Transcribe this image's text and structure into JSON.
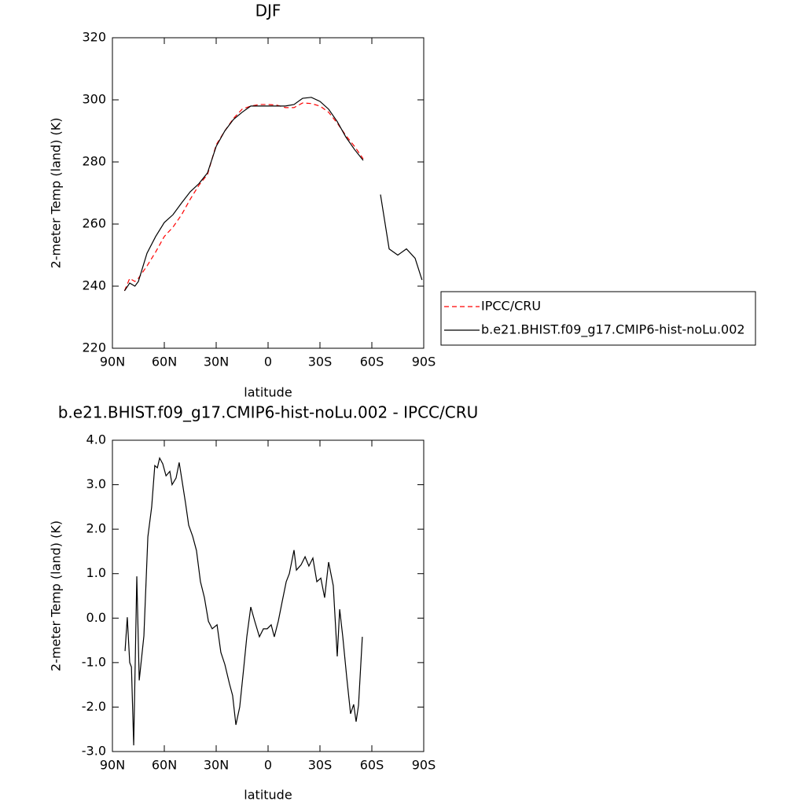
{
  "chart_data": [
    {
      "type": "line",
      "title": "DJF",
      "xlabel": "latitude",
      "ylabel": "2-meter Temp (land) (K)",
      "x": [
        83,
        80,
        77,
        75,
        70,
        65,
        60,
        55,
        50,
        45,
        40,
        35,
        30,
        25,
        20,
        15,
        10,
        5,
        0,
        -5,
        -10,
        -15,
        -20,
        -25,
        -30,
        -35,
        -40,
        -45,
        -50,
        -55,
        -60,
        -65,
        -70,
        -75,
        -80,
        -85,
        -89
      ],
      "series": [
        {
          "name": "IPCC/CRU",
          "color": "#ff0000",
          "dashed": true,
          "values": [
            238.5,
            242.5,
            241.5,
            242.5,
            246.5,
            251,
            256,
            259,
            263,
            268,
            272.5,
            276,
            285.5,
            290,
            294,
            297,
            298,
            298.5,
            298.5,
            298.3,
            297.5,
            297.5,
            299,
            298.8,
            298,
            296,
            292.5,
            288.5,
            285,
            281,
            null,
            null,
            null,
            null,
            null,
            null,
            null
          ]
        },
        {
          "name": "b.e21.BHIST.f09_g17.CMIP6-hist-noLu.002",
          "color": "#000000",
          "dashed": false,
          "values": [
            238.5,
            241,
            240,
            241.5,
            250.6,
            256,
            260.5,
            263,
            266.8,
            270.4,
            273,
            276.5,
            285,
            290,
            293.7,
            296,
            298,
            298,
            298,
            298,
            298,
            298.5,
            300.5,
            300.8,
            299.5,
            297,
            293,
            288,
            284,
            280.5,
            null,
            269.5,
            252,
            250,
            252,
            249,
            242
          ]
        }
      ],
      "xlim": [
        90,
        -90
      ],
      "xticks": [
        {
          "value": 90,
          "label": "90N"
        },
        {
          "value": 60,
          "label": "60N"
        },
        {
          "value": 30,
          "label": "30N"
        },
        0,
        {
          "value": -30,
          "label": "30S"
        },
        {
          "value": -60,
          "label": "60S"
        },
        {
          "value": -90,
          "label": "90S"
        }
      ],
      "ylim": [
        220,
        320
      ],
      "yticks": [
        220,
        240,
        260,
        280,
        300,
        320
      ],
      "legend": "right"
    },
    {
      "type": "line",
      "title": "b.e21.BHIST.f09_g17.CMIP6-hist-noLu.002 - IPCC/CRU",
      "xlabel": "latitude",
      "ylabel": "2-meter Temp (land) (K)",
      "x": [
        82.7,
        81.4,
        80,
        79,
        77.7,
        75.9,
        74.5,
        71.8,
        69.5,
        67.3,
        65.5,
        64,
        62.7,
        60.9,
        59,
        56.8,
        55.5,
        53.2,
        51.4,
        49.5,
        47.7,
        45.9,
        43.6,
        41.4,
        39.1,
        36.8,
        34.5,
        32.3,
        29.5,
        27.3,
        25,
        22.3,
        20.5,
        18.6,
        16.4,
        14.1,
        12.3,
        10,
        7.7,
        5,
        2.7,
        0.5,
        -1.8,
        -3.6,
        -5.9,
        -8.2,
        -10.5,
        -12.3,
        -15,
        -16.4,
        -19.1,
        -21.4,
        -23.6,
        -25.9,
        -28.2,
        -30.5,
        -32.7,
        -35,
        -37.7,
        -40,
        -41.4,
        -43.2,
        -45.5,
        -47.7,
        -49.5,
        -50.9,
        -52.3,
        -54.5
      ],
      "values": [
        -0.74,
        0.02,
        -1.0,
        -1.1,
        -2.86,
        0.94,
        -1.4,
        -0.4,
        1.83,
        2.5,
        3.43,
        3.38,
        3.6,
        3.47,
        3.2,
        3.3,
        3.0,
        3.15,
        3.5,
        3.03,
        2.58,
        2.09,
        1.84,
        1.52,
        0.82,
        0.46,
        -0.07,
        -0.24,
        -0.15,
        -0.77,
        -1.04,
        -1.48,
        -1.74,
        -2.4,
        -2.0,
        -1.13,
        -0.42,
        0.25,
        -0.07,
        -0.42,
        -0.24,
        -0.24,
        -0.15,
        -0.42,
        -0.07,
        0.38,
        0.82,
        1.0,
        1.53,
        1.08,
        1.2,
        1.38,
        1.17,
        1.35,
        0.82,
        0.9,
        0.46,
        1.26,
        0.73,
        -0.86,
        0.2,
        -0.42,
        -1.34,
        -2.15,
        -1.94,
        -2.33,
        -1.96,
        -0.42
      ],
      "color": "#000000",
      "xlim": [
        90,
        -90
      ],
      "xticks": [
        {
          "value": 90,
          "label": "90N"
        },
        {
          "value": 60,
          "label": "60N"
        },
        {
          "value": 30,
          "label": "30N"
        },
        0,
        {
          "value": -30,
          "label": "30S"
        },
        {
          "value": -60,
          "label": "60S"
        },
        {
          "value": -90,
          "label": "90S"
        }
      ],
      "ylim": [
        -3,
        4
      ],
      "yticks": [
        {
          "value": -3,
          "label": "-3.0"
        },
        {
          "value": -2,
          "label": "-2.0"
        },
        {
          "value": -1,
          "label": "-1.0"
        },
        {
          "value": 0,
          "label": "0.0"
        },
        {
          "value": 1,
          "label": "1.0"
        },
        {
          "value": 2,
          "label": "2.0"
        },
        {
          "value": 3,
          "label": "3.0"
        },
        {
          "value": 4,
          "label": "4.0"
        }
      ]
    }
  ]
}
